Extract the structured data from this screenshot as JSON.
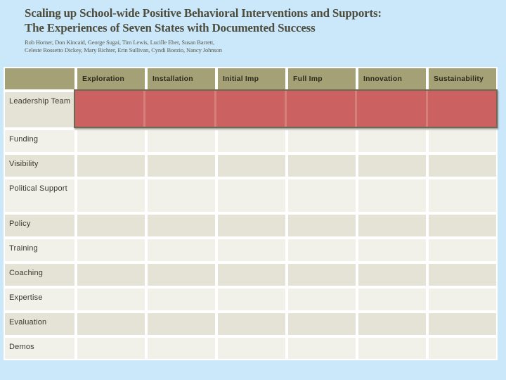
{
  "slide": {
    "title_line1": "Scaling up School-wide Positive Behavioral Interventions and Supports:",
    "title_line2": "The Experiences of Seven States with Documented Success",
    "authors_line1": "Rob Horner, Don Kincaid, George Sugai, Tim Lewis, Lucille Eber, Susan Barrett,",
    "authors_line2": "Celeste Rossetto Dickey, Mary Richter, Erin Sullivan, Cyndi Boezio, Nancy Johnson"
  },
  "table": {
    "columns": [
      "Exploration",
      "Installation",
      "Initial Imp",
      "Full Imp",
      "Innovation",
      "Sustainability"
    ],
    "rows": [
      "Leadership Team",
      "Funding",
      "Visibility",
      "Political Support",
      "Policy",
      "Training",
      "Coaching",
      "Expertise",
      "Evaluation",
      "Demos"
    ],
    "highlight": {
      "row": "Leadership Team",
      "spans_columns": [
        "Exploration",
        "Installation",
        "Initial Imp",
        "Full Imp",
        "Innovation",
        "Sustainability"
      ]
    }
  },
  "colors": {
    "page_background": "#cae8fa",
    "header_fill": "#a5a176",
    "row_band_dark": "#e5e3d6",
    "row_band_light": "#f1f0e9",
    "grid_lines": "#ffffff",
    "highlight_fill": "#cc6161",
    "highlight_divider": "#d6807b",
    "highlight_border": "#6f6852",
    "title_text": "#4f4d3d",
    "header_text": "#2f2c1e",
    "label_text": "#3a382c"
  }
}
